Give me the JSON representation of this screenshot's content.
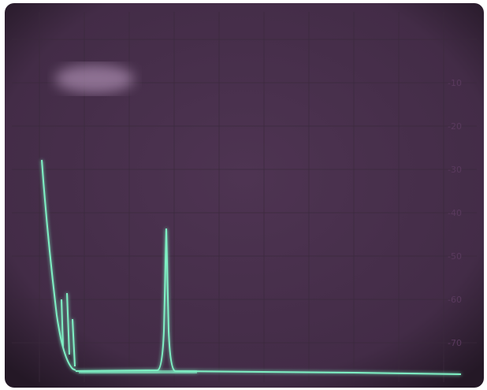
{
  "scale_labels": [
    "-10",
    "-20",
    "-30",
    "-40",
    "-50",
    "-60",
    "-70"
  ]
}
